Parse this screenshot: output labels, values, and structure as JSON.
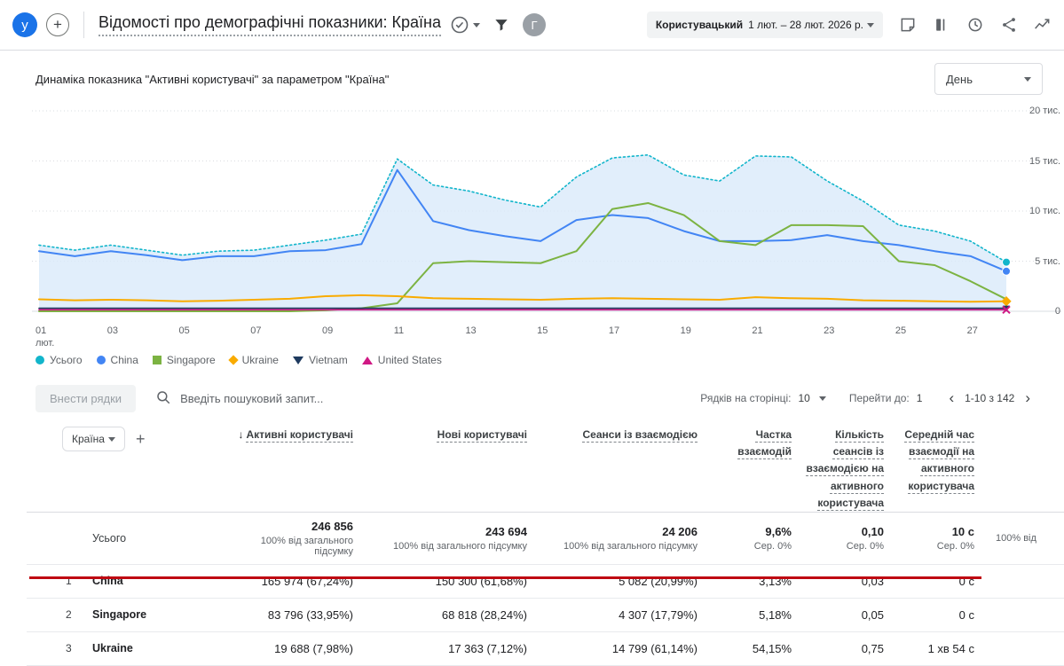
{
  "topbar": {
    "avatar_initial": "у",
    "add_label": "+",
    "title": "Відомості про демографічні показники: Країна",
    "account_initial": "Г",
    "date_range": {
      "type_label": "Користувацький",
      "range_label": "1 лют. – 28 лют. 2026 р."
    }
  },
  "chart": {
    "title": "Динаміка показника \"Активні користувачі\" за параметром \"Країна\"",
    "granularity_selected": "День"
  },
  "chart_data": {
    "type": "line",
    "title": "Динаміка показника \"Активні користувачі\" за параметром \"Країна\"",
    "x": [
      1,
      2,
      3,
      4,
      5,
      6,
      7,
      8,
      9,
      10,
      11,
      12,
      13,
      14,
      15,
      16,
      17,
      18,
      19,
      20,
      21,
      22,
      23,
      24,
      25,
      26,
      27,
      28
    ],
    "x_tick_days": [
      1,
      3,
      5,
      7,
      9,
      11,
      13,
      15,
      17,
      19,
      21,
      23,
      25,
      27
    ],
    "x_tick_labels": [
      "01\nлют.",
      "03",
      "05",
      "07",
      "09",
      "11",
      "13",
      "15",
      "17",
      "19",
      "21",
      "23",
      "25",
      "27"
    ],
    "ylim": [
      0,
      20000
    ],
    "y_ticks": [
      {
        "value": 20000,
        "label": "20 тис."
      },
      {
        "value": 15000,
        "label": "15 тис."
      },
      {
        "value": 10000,
        "label": "10 тис."
      },
      {
        "value": 5000,
        "label": "5 тис."
      },
      {
        "value": 0,
        "label": "0"
      }
    ],
    "area_fill": "#d9eafa",
    "series": [
      {
        "name": "Усього",
        "color": "#12b5cb",
        "dashed": true,
        "width": 1.6,
        "end_marker": "circle",
        "area": true,
        "values": [
          6600,
          6100,
          6600,
          6100,
          5600,
          6000,
          6100,
          6600,
          7100,
          7700,
          15200,
          12600,
          12000,
          11100,
          10400,
          13400,
          15300,
          15600,
          13600,
          13000,
          15500,
          15400,
          13000,
          11000,
          8600,
          8000,
          7000,
          4900
        ]
      },
      {
        "name": "China",
        "color": "#4285f4",
        "dashed": false,
        "width": 2,
        "end_marker": "circle",
        "values": [
          6000,
          5500,
          6000,
          5600,
          5100,
          5500,
          5500,
          6000,
          6100,
          6700,
          14100,
          9000,
          8100,
          7500,
          7000,
          9100,
          9600,
          9300,
          8000,
          7000,
          7000,
          7100,
          7600,
          7000,
          6600,
          6000,
          5500,
          4000
        ]
      },
      {
        "name": "Singapore",
        "color": "#7cb342",
        "dashed": false,
        "width": 2,
        "end_marker": null,
        "values": [
          0,
          0,
          0,
          0,
          0,
          0,
          0,
          0,
          100,
          300,
          800,
          4800,
          5000,
          4900,
          4800,
          6000,
          10200,
          10800,
          9600,
          7000,
          6600,
          8600,
          8600,
          8500,
          5000,
          4600,
          3000,
          1200
        ]
      },
      {
        "name": "Ukraine",
        "color": "#f9ab00",
        "dashed": false,
        "width": 2,
        "end_marker": "diamond",
        "values": [
          1200,
          1100,
          1150,
          1100,
          1000,
          1050,
          1150,
          1250,
          1500,
          1600,
          1500,
          1300,
          1250,
          1200,
          1150,
          1250,
          1300,
          1250,
          1200,
          1150,
          1400,
          1300,
          1250,
          1100,
          1050,
          1000,
          950,
          1000
        ]
      },
      {
        "name": "Vietnam",
        "color": "#1e3a5f",
        "dashed": false,
        "width": 1.6,
        "end_marker": "triangle",
        "values": [
          300,
          300,
          300,
          300,
          300,
          300,
          300,
          300,
          300,
          300,
          300,
          300,
          300,
          300,
          300,
          300,
          300,
          300,
          300,
          300,
          300,
          300,
          300,
          300,
          300,
          300,
          300,
          300
        ]
      },
      {
        "name": "United States",
        "color": "#d01884",
        "dashed": false,
        "width": 1.6,
        "end_marker": "x",
        "values": [
          150,
          150,
          150,
          150,
          150,
          150,
          150,
          150,
          150,
          150,
          150,
          150,
          150,
          150,
          150,
          150,
          150,
          150,
          150,
          150,
          150,
          150,
          150,
          150,
          150,
          150,
          150,
          150
        ]
      }
    ]
  },
  "legend": [
    {
      "label": "Усього",
      "color": "#12b5cb",
      "marker": "circle"
    },
    {
      "label": "China",
      "color": "#4285f4",
      "marker": "circle"
    },
    {
      "label": "Singapore",
      "color": "#7cb342",
      "marker": "square"
    },
    {
      "label": "Ukraine",
      "color": "#f9ab00",
      "marker": "diamond"
    },
    {
      "label": "Vietnam",
      "color": "#1e3a5f",
      "marker": "triangle-down"
    },
    {
      "label": "United States",
      "color": "#d01884",
      "marker": "triangle-up"
    }
  ],
  "icons": {
    "sort_desc": "↓",
    "prev": "‹",
    "next": "›"
  },
  "table": {
    "toolbar": {
      "edit_rows_label": "Внести рядки",
      "search_placeholder": "Введіть пошуковий запит...",
      "rows_per_page_label": "Рядків на сторінці:",
      "rows_per_page_value": "10",
      "goto_label": "Перейти до:",
      "goto_value": "1",
      "pagination": "1-10 з 142"
    },
    "dimension_selector": "Країна",
    "add_label": "+",
    "columns": [
      {
        "label": "Активні користувачі"
      },
      {
        "label": "Нові користувачі"
      },
      {
        "label": "Сеанси із взаємодією"
      },
      {
        "label": "Частка взаємодій"
      },
      {
        "label": "Кількість сеансів із взаємодією на активного користувача"
      },
      {
        "label": "Середній час взаємодії на активного користувача"
      }
    ],
    "totals": {
      "name": "Усього",
      "cells": [
        {
          "value": "246 856",
          "sub": "100% від загального підсумку"
        },
        {
          "value": "243 694",
          "sub": "100% від загального підсумку"
        },
        {
          "value": "24 206",
          "sub": "100% від загального підсумку"
        },
        {
          "value": "9,6%",
          "sub": "Сер. 0%"
        },
        {
          "value": "0,10",
          "sub": "Сер. 0%"
        },
        {
          "value": "10 с",
          "sub": "Сер. 0%"
        }
      ],
      "overflow": "100% від"
    },
    "rows": [
      {
        "index": "1",
        "name": "China",
        "cells": [
          "165 974 (67,24%)",
          "150 300 (61,68%)",
          "5 082 (20,99%)",
          "3,13%",
          "0,03",
          "0 с"
        ]
      },
      {
        "index": "2",
        "name": "Singapore",
        "cells": [
          "83 796 (33,95%)",
          "68 818 (28,24%)",
          "4 307 (17,79%)",
          "5,18%",
          "0,05",
          "0 с"
        ]
      },
      {
        "index": "3",
        "name": "Ukraine",
        "cells": [
          "19 688 (7,98%)",
          "17 363 (7,12%)",
          "14 799 (61,14%)",
          "54,15%",
          "0,75",
          "1 хв 54 с"
        ]
      }
    ]
  }
}
